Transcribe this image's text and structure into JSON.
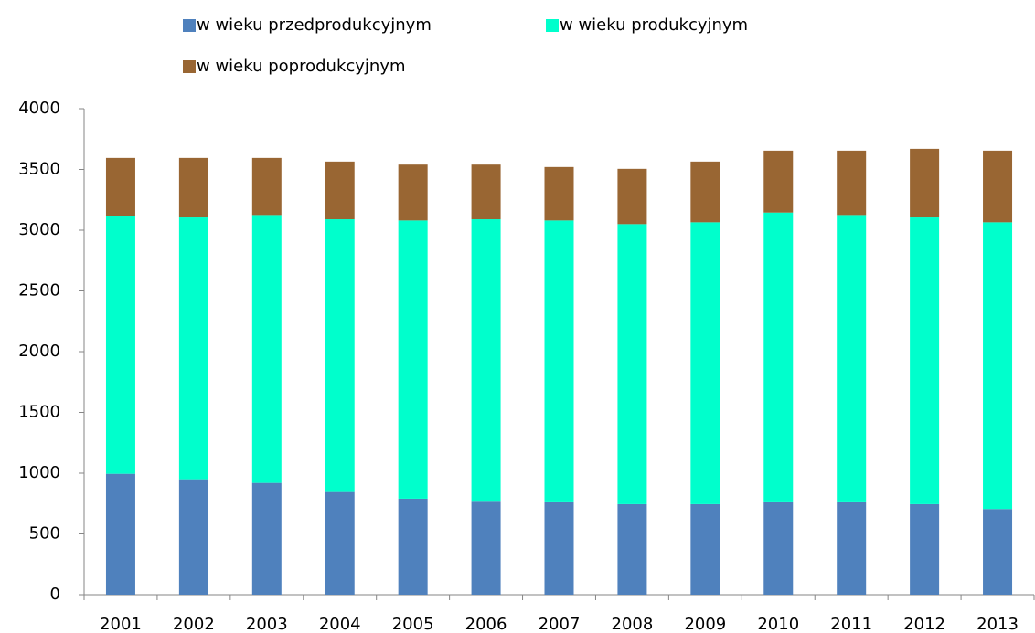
{
  "chart_data": {
    "type": "stacked_bar",
    "categories": [
      "2001",
      "2002",
      "2003",
      "2004",
      "2005",
      "2006",
      "2007",
      "2008",
      "2009",
      "2010",
      "2011",
      "2012",
      "2013"
    ],
    "series": [
      {
        "name": "w wieku przedprodukcyjnym",
        "color": "#4f81bd",
        "values": [
          995,
          950,
          920,
          845,
          790,
          765,
          760,
          745,
          745,
          760,
          760,
          745,
          705
        ]
      },
      {
        "name": "w wieku produkcyjnym",
        "color": "#00ffcc",
        "values": [
          2120,
          2155,
          2205,
          2245,
          2290,
          2325,
          2320,
          2305,
          2320,
          2385,
          2365,
          2360,
          2360
        ]
      },
      {
        "name": "w wieku poprodukcyjnym",
        "color": "#996633",
        "values": [
          480,
          490,
          470,
          475,
          460,
          450,
          440,
          455,
          500,
          510,
          530,
          565,
          590
        ]
      }
    ],
    "ylim": [
      0,
      4000
    ],
    "yticks": [
      0,
      500,
      1000,
      1500,
      2000,
      2500,
      3000,
      3500,
      4000
    ],
    "grid": false,
    "legend": "top"
  }
}
